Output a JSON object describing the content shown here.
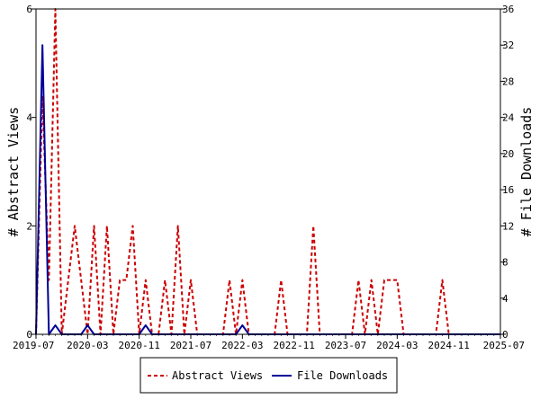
{
  "chart_data": {
    "type": "line",
    "x_axis": {
      "tick_labels": [
        "2019-07",
        "2020-03",
        "2020-11",
        "2021-07",
        "2022-03",
        "2022-11",
        "2023-07",
        "2024-03",
        "2024-11",
        "2025-07"
      ]
    },
    "y_left": {
      "label": "# Abstract Views",
      "range": [
        0,
        6
      ],
      "ticks": [
        0,
        2,
        4,
        6
      ]
    },
    "y_right": {
      "label": "# File Downloads",
      "range": [
        0,
        36
      ],
      "ticks": [
        0,
        4,
        8,
        12,
        16,
        20,
        24,
        28,
        32,
        36
      ]
    },
    "grid": false,
    "legend_position": "bottom-center",
    "series": [
      {
        "name": "Abstract Views",
        "axis": "left",
        "color": "#cc0000",
        "style": "dashed",
        "points": [
          [
            "2019-07",
            0
          ],
          [
            "2019-08",
            4.4
          ],
          [
            "2019-09",
            1
          ],
          [
            "2019-10",
            6
          ],
          [
            "2019-11",
            0
          ],
          [
            "2020-01",
            2
          ],
          [
            "2020-02",
            1
          ],
          [
            "2020-03",
            0
          ],
          [
            "2020-04",
            2
          ],
          [
            "2020-05",
            0
          ],
          [
            "2020-06",
            2
          ],
          [
            "2020-07",
            0
          ],
          [
            "2020-08",
            1
          ],
          [
            "2020-09",
            1
          ],
          [
            "2020-10",
            2
          ],
          [
            "2020-11",
            0
          ],
          [
            "2020-12",
            1
          ],
          [
            "2021-01",
            0
          ],
          [
            "2021-02",
            0
          ],
          [
            "2021-03",
            1
          ],
          [
            "2021-04",
            0
          ],
          [
            "2021-05",
            2
          ],
          [
            "2021-06",
            0
          ],
          [
            "2021-07",
            1
          ],
          [
            "2021-08",
            0
          ],
          [
            "2021-12",
            0
          ],
          [
            "2022-01",
            1
          ],
          [
            "2022-02",
            0
          ],
          [
            "2022-03",
            1
          ],
          [
            "2022-04",
            0
          ],
          [
            "2022-08",
            0
          ],
          [
            "2022-09",
            1
          ],
          [
            "2022-10",
            0
          ],
          [
            "2023-01",
            0
          ],
          [
            "2023-02",
            2
          ],
          [
            "2023-03",
            0
          ],
          [
            "2023-08",
            0
          ],
          [
            "2023-09",
            1
          ],
          [
            "2023-10",
            0
          ],
          [
            "2023-11",
            1
          ],
          [
            "2023-12",
            0
          ],
          [
            "2024-01",
            1
          ],
          [
            "2024-03",
            1
          ],
          [
            "2024-04",
            0
          ],
          [
            "2024-09",
            0
          ],
          [
            "2024-10",
            1
          ],
          [
            "2024-11",
            0
          ],
          [
            "2025-07",
            0
          ]
        ]
      },
      {
        "name": "File Downloads",
        "axis": "right",
        "color": "#000099",
        "style": "solid",
        "points": [
          [
            "2019-07",
            0
          ],
          [
            "2019-08",
            32
          ],
          [
            "2019-09",
            0
          ],
          [
            "2019-10",
            1
          ],
          [
            "2019-11",
            0
          ],
          [
            "2020-02",
            0
          ],
          [
            "2020-03",
            1
          ],
          [
            "2020-04",
            0
          ],
          [
            "2020-11",
            0
          ],
          [
            "2020-12",
            1
          ],
          [
            "2021-01",
            0
          ],
          [
            "2022-02",
            0
          ],
          [
            "2022-03",
            1
          ],
          [
            "2022-04",
            0
          ],
          [
            "2025-07",
            0
          ]
        ]
      }
    ]
  }
}
